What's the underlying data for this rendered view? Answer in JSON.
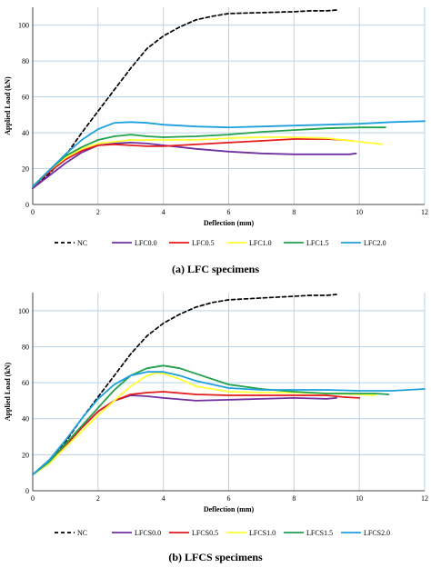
{
  "chart_data": [
    {
      "type": "line",
      "caption": "(a) LFC specimens",
      "xlabel": "Deflection (mm)",
      "ylabel": "Applied Load (kN)",
      "xlim": [
        0,
        12
      ],
      "ylim": [
        0,
        110
      ],
      "x_ticks": [
        0,
        2,
        4,
        6,
        8,
        10,
        12
      ],
      "y_ticks": [
        0,
        20,
        40,
        60,
        80,
        100
      ],
      "grid": true,
      "legend_position": "bottom",
      "series": [
        {
          "name": "NC",
          "color": "#000000",
          "dash": true,
          "points": [
            [
              0,
              9
            ],
            [
              0.5,
              17
            ],
            [
              1,
              27
            ],
            [
              1.5,
              40
            ],
            [
              2,
              52
            ],
            [
              2.5,
              64
            ],
            [
              3,
              76
            ],
            [
              3.5,
              87
            ],
            [
              4,
              94
            ],
            [
              4.5,
              99
            ],
            [
              5,
              103
            ],
            [
              5.5,
              105
            ],
            [
              6,
              106.5
            ],
            [
              7,
              107
            ],
            [
              8,
              107.5
            ],
            [
              8.5,
              108
            ],
            [
              9,
              108
            ],
            [
              9.3,
              108.5
            ]
          ]
        },
        {
          "name": "LFC0.0",
          "color": "#7030A0",
          "dash": false,
          "points": [
            [
              0,
              9
            ],
            [
              0.5,
              16
            ],
            [
              1,
              23
            ],
            [
              1.5,
              29
            ],
            [
              2,
              33
            ],
            [
              2.5,
              34
            ],
            [
              3,
              34.5
            ],
            [
              3.5,
              34
            ],
            [
              4,
              33
            ],
            [
              5,
              31
            ],
            [
              6,
              29.5
            ],
            [
              7,
              28.5
            ],
            [
              8,
              28
            ],
            [
              9,
              28
            ],
            [
              9.7,
              28
            ],
            [
              9.9,
              28.5
            ]
          ]
        },
        {
          "name": "LFC0.5",
          "color": "#E41A1C",
          "dash": false,
          "points": [
            [
              0,
              10
            ],
            [
              0.5,
              18
            ],
            [
              1,
              25
            ],
            [
              1.5,
              30
            ],
            [
              2,
              33
            ],
            [
              2.5,
              33.5
            ],
            [
              3,
              33
            ],
            [
              3.5,
              32.5
            ],
            [
              4,
              32.5
            ],
            [
              5,
              33.5
            ],
            [
              6,
              34.5
            ],
            [
              7,
              35.5
            ],
            [
              8,
              36.5
            ],
            [
              9,
              36.5
            ],
            [
              9.5,
              36
            ],
            [
              9.8,
              35.5
            ]
          ]
        },
        {
          "name": "LFC1.0",
          "color": "#FFFF33",
          "dash": false,
          "points": [
            [
              0,
              10
            ],
            [
              0.5,
              19
            ],
            [
              1,
              26
            ],
            [
              1.5,
              31
            ],
            [
              2,
              34
            ],
            [
              2.5,
              35
            ],
            [
              3,
              36
            ],
            [
              3.5,
              36
            ],
            [
              4,
              36
            ],
            [
              5,
              36
            ],
            [
              6,
              37
            ],
            [
              7,
              37.5
            ],
            [
              8,
              37.5
            ],
            [
              9,
              37
            ],
            [
              10,
              35
            ],
            [
              10.5,
              34
            ],
            [
              10.7,
              33.5
            ]
          ]
        },
        {
          "name": "LFC1.5",
          "color": "#22A04B",
          "dash": false,
          "points": [
            [
              0,
              10
            ],
            [
              0.5,
              19
            ],
            [
              1,
              27
            ],
            [
              1.5,
              32
            ],
            [
              2,
              36
            ],
            [
              2.5,
              38
            ],
            [
              3,
              39
            ],
            [
              3.5,
              38
            ],
            [
              4,
              37.5
            ],
            [
              5,
              38
            ],
            [
              6,
              39
            ],
            [
              7,
              40.5
            ],
            [
              8,
              41.5
            ],
            [
              9,
              42.5
            ],
            [
              10,
              43
            ],
            [
              10.8,
              43
            ]
          ]
        },
        {
          "name": "LFC2.0",
          "color": "#1FA0DC",
          "dash": false,
          "points": [
            [
              0,
              10
            ],
            [
              0.5,
              19
            ],
            [
              1,
              28
            ],
            [
              1.5,
              36
            ],
            [
              2,
              42
            ],
            [
              2.5,
              45.5
            ],
            [
              3,
              46
            ],
            [
              3.5,
              45.5
            ],
            [
              4,
              44.5
            ],
            [
              5,
              43.5
            ],
            [
              6,
              43
            ],
            [
              7,
              43.5
            ],
            [
              8,
              44
            ],
            [
              9,
              44.5
            ],
            [
              10,
              45
            ],
            [
              11,
              46
            ],
            [
              12,
              46.5
            ]
          ]
        }
      ]
    },
    {
      "type": "line",
      "caption": "(b) LFCS specimens",
      "xlabel": "Deflection (mm)",
      "ylabel": "Applied Load (kN)",
      "xlim": [
        0,
        12
      ],
      "ylim": [
        0,
        110
      ],
      "x_ticks": [
        0,
        2,
        4,
        6,
        8,
        10,
        12
      ],
      "y_ticks": [
        0,
        20,
        40,
        60,
        80,
        100
      ],
      "grid": true,
      "legend_position": "bottom",
      "series": [
        {
          "name": "NC",
          "color": "#000000",
          "dash": true,
          "points": [
            [
              0,
              9
            ],
            [
              0.5,
              17
            ],
            [
              1,
              27
            ],
            [
              1.5,
              40
            ],
            [
              2,
              52
            ],
            [
              2.5,
              64
            ],
            [
              3,
              76
            ],
            [
              3.5,
              86
            ],
            [
              4,
              93
            ],
            [
              4.5,
              98
            ],
            [
              5,
              102
            ],
            [
              5.5,
              104.5
            ],
            [
              6,
              106
            ],
            [
              7,
              107
            ],
            [
              8,
              108
            ],
            [
              8.5,
              108.5
            ],
            [
              9,
              108.5
            ],
            [
              9.3,
              109
            ]
          ]
        },
        {
          "name": "LFCS0.0",
          "color": "#7030A0",
          "dash": false,
          "points": [
            [
              0,
              9
            ],
            [
              0.5,
              15
            ],
            [
              1,
              25
            ],
            [
              1.5,
              35
            ],
            [
              2,
              44
            ],
            [
              2.5,
              50
            ],
            [
              3,
              53
            ],
            [
              3.5,
              52.5
            ],
            [
              4,
              51.5
            ],
            [
              5,
              50
            ],
            [
              6,
              50.5
            ],
            [
              7,
              51
            ],
            [
              8,
              51.5
            ],
            [
              9,
              51
            ],
            [
              9.3,
              51.5
            ]
          ]
        },
        {
          "name": "LFCS0.5",
          "color": "#E41A1C",
          "dash": false,
          "points": [
            [
              0,
              9
            ],
            [
              0.5,
              16
            ],
            [
              1,
              25
            ],
            [
              1.5,
              35
            ],
            [
              2,
              44
            ],
            [
              2.5,
              50
            ],
            [
              3,
              53.5
            ],
            [
              3.5,
              54.5
            ],
            [
              4,
              55
            ],
            [
              5,
              53.5
            ],
            [
              6,
              53
            ],
            [
              7,
              53
            ],
            [
              8,
              53
            ],
            [
              9,
              53
            ],
            [
              9.5,
              52
            ],
            [
              10,
              51.5
            ]
          ]
        },
        {
          "name": "LFCS1.0",
          "color": "#FFFF33",
          "dash": false,
          "points": [
            [
              0,
              9
            ],
            [
              0.5,
              15
            ],
            [
              1,
              24
            ],
            [
              1.5,
              33
            ],
            [
              2,
              42
            ],
            [
              2.5,
              50
            ],
            [
              3,
              58
            ],
            [
              3.5,
              64
            ],
            [
              3.8,
              65.5
            ],
            [
              4,
              65
            ],
            [
              4.5,
              62
            ],
            [
              5,
              58
            ],
            [
              6,
              55
            ],
            [
              7,
              54.5
            ],
            [
              8,
              54.5
            ],
            [
              9,
              54
            ],
            [
              10,
              53.5
            ],
            [
              10.5,
              53
            ]
          ]
        },
        {
          "name": "LFCS1.5",
          "color": "#22A04B",
          "dash": false,
          "points": [
            [
              0,
              9
            ],
            [
              0.5,
              16
            ],
            [
              1,
              26
            ],
            [
              1.5,
              36
            ],
            [
              2,
              46
            ],
            [
              2.5,
              56
            ],
            [
              3,
              64
            ],
            [
              3.5,
              68
            ],
            [
              4,
              69.5
            ],
            [
              4.5,
              68
            ],
            [
              5,
              65
            ],
            [
              6,
              59
            ],
            [
              7,
              56.5
            ],
            [
              8,
              55
            ],
            [
              9,
              54
            ],
            [
              10,
              54
            ],
            [
              10.5,
              54
            ],
            [
              10.9,
              53.5
            ]
          ]
        },
        {
          "name": "LFCS2.0",
          "color": "#1FA0DC",
          "dash": false,
          "points": [
            [
              0,
              9
            ],
            [
              0.5,
              17
            ],
            [
              1,
              28
            ],
            [
              1.5,
              40
            ],
            [
              2,
              51
            ],
            [
              2.5,
              59
            ],
            [
              3,
              64
            ],
            [
              3.5,
              66
            ],
            [
              4,
              66
            ],
            [
              4.5,
              64
            ],
            [
              5,
              61
            ],
            [
              6,
              57
            ],
            [
              7,
              56
            ],
            [
              8,
              56
            ],
            [
              9,
              56
            ],
            [
              10,
              55.5
            ],
            [
              11,
              55.5
            ],
            [
              12,
              56.5
            ]
          ]
        }
      ]
    }
  ]
}
